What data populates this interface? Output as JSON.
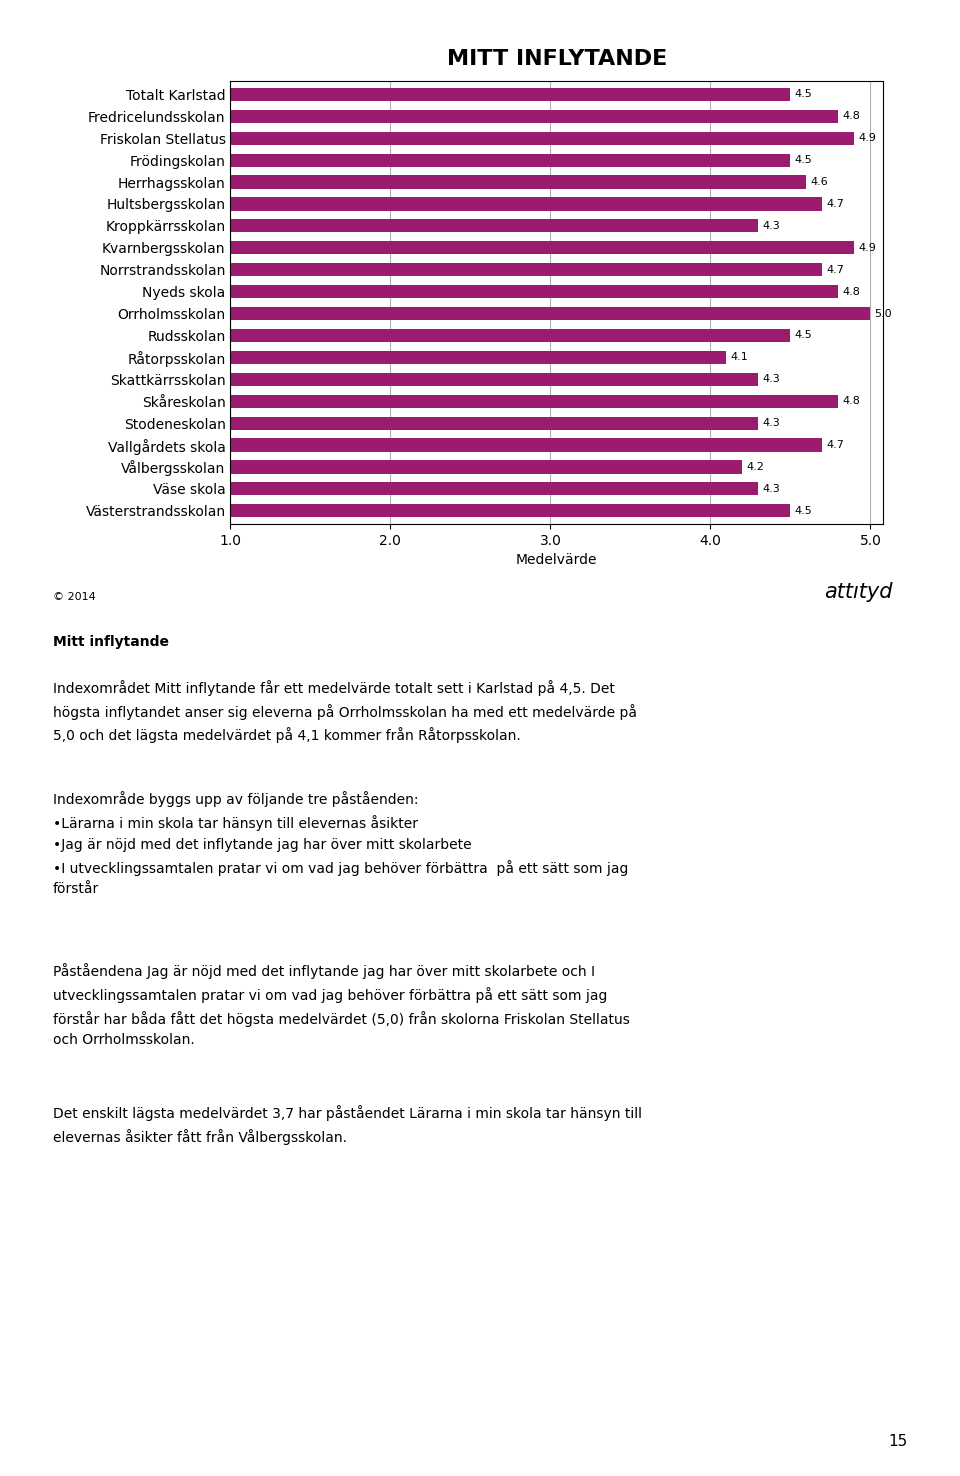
{
  "chart_data": {
    "type": "bar",
    "orientation": "horizontal",
    "title": "MITT INFLYTANDE",
    "categories": [
      "Totalt Karlstad",
      "Fredricelundsskolan",
      "Friskolan Stellatus",
      "Frödingskolan",
      "Herrhagsskolan",
      "Hultsbergsskolan",
      "Kroppkärrsskolan",
      "Kvarnbergsskolan",
      "Norrstrandsskolan",
      "Nyeds skola",
      "Orrholmsskolan",
      "Rudsskolan",
      "Råtorpsskolan",
      "Skattkärrsskolan",
      "Skåreskolan",
      "Stodeneskolan",
      "Vallgårdets skola",
      "Vålbergsskolan",
      "Väse skola",
      "Västerstrandsskolan"
    ],
    "values": [
      4.5,
      4.8,
      4.9,
      4.5,
      4.6,
      4.7,
      4.3,
      4.9,
      4.7,
      4.8,
      5.0,
      4.5,
      4.1,
      4.3,
      4.8,
      4.3,
      4.7,
      4.2,
      4.3,
      4.5
    ],
    "color": "#9B1B6E",
    "xlabel": "Medelvärde",
    "xlim": [
      1.0,
      5.08
    ],
    "xticks": [
      {
        "value": 1.0,
        "label": "1.0"
      },
      {
        "value": 2.0,
        "label": "2.0"
      },
      {
        "value": 3.0,
        "label": "3.0"
      },
      {
        "value": 4.0,
        "label": "4.0"
      },
      {
        "value": 5.0,
        "label": "5.0"
      }
    ],
    "grid": true,
    "data_labels": true,
    "annotations": [
      "attıtyd",
      "© 2014",
      "Mitt inflytande",
      "Indexområdet Mitt inflytande får ett medelvärde totalt sett i Karlstad på 4,5. Det\nhögsta inflytandet anser sig eleverna på Orrholmsskolan ha med ett medelvärde på\n5,0 och det lägsta medelvärdet på 4,1 kommer från Råtorpsskolan.",
      "Indexområde byggs upp av följande tre påståenden:\n•Lärarna i min skola tar hänsyn till elevernas åsikter\n•Jag är nöjd med det inflytande jag har över mitt skolarbete\n•I utvecklingssamtalen pratar vi om vad jag behöver förbättra  på ett sätt som jag\nförstår",
      "Påståendena Jag är nöjd med det inflytande jag har över mitt skolarbete och I\nutvecklingssamtalen pratar vi om vad jag behöver förbättra på ett sätt som jag\nförstår har båda fått det högsta medelvärdet (5,0) från skolorna Friskolan Stellatus\noch Orrholmsskolan.",
      "Det enskilt lägsta medelvärdet 3,7 har påståendet Lärarna i min skola tar hänsyn till\nelevernas åsikter fått från Vålbergsskolan.",
      "15"
    ]
  }
}
